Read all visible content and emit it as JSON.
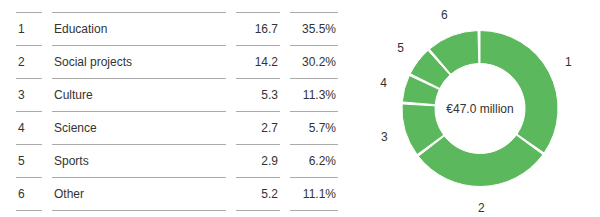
{
  "chart_data": {
    "type": "pie",
    "categories": [
      "Education",
      "Social projects",
      "Culture",
      "Science",
      "Sports",
      "Other"
    ],
    "numbers": [
      1,
      2,
      3,
      4,
      5,
      6
    ],
    "values": [
      16.7,
      14.2,
      5.3,
      2.7,
      2.9,
      5.2
    ],
    "percentages": [
      {
        "value": 35.5,
        "label": "35.5%"
      },
      {
        "value": 30.2,
        "label": "30.2%"
      },
      {
        "value": 11.3,
        "label": "11.3%"
      },
      {
        "value": 5.7,
        "label": "5.7%"
      },
      {
        "value": 6.2,
        "label": "6.2%"
      },
      {
        "value": 11.1,
        "label": "11.1%"
      }
    ],
    "center_label": "€47.0 million",
    "color": "#5cb85c"
  }
}
